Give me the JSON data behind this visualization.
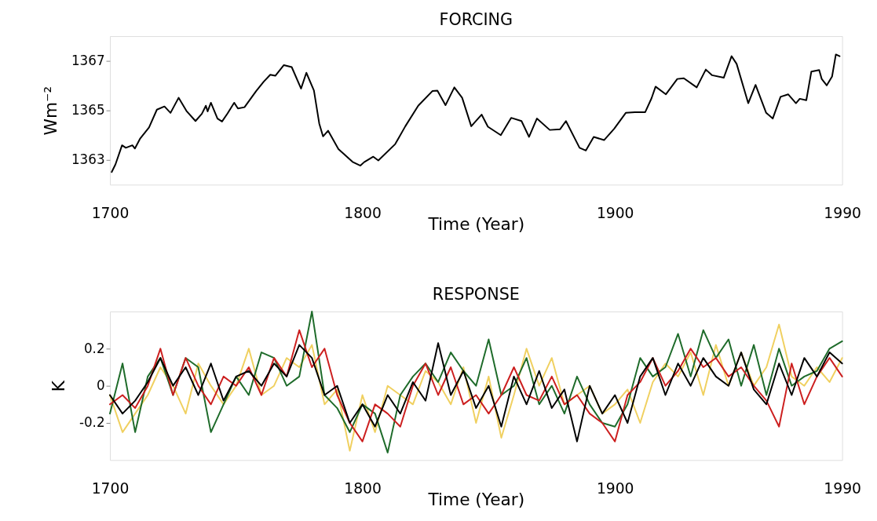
{
  "chart_data": [
    {
      "type": "line",
      "title": "FORCING",
      "xlabel": "Time (Year)",
      "ylabel": "Wm⁻²",
      "xlim": [
        1700,
        1990
      ],
      "xticks": [
        1700,
        1800,
        1900,
        1990
      ],
      "ylim": [
        1362,
        1368
      ],
      "yticks": [
        1363,
        1365,
        1367
      ],
      "grid": false,
      "series": [
        {
          "color": "#000000",
          "x": [
            1700.7,
            1702.2,
            1704.8,
            1706.3,
            1708.9,
            1709.9,
            1711.9,
            1715.5,
            1718.6,
            1721.6,
            1724.0,
            1727.2,
            1730.3,
            1733.9,
            1736.4,
            1738.0,
            1738.7,
            1740.0,
            1742.6,
            1744.4,
            1746.6,
            1749.2,
            1750.7,
            1753.3,
            1757.9,
            1760.9,
            1763.5,
            1765.5,
            1768.9,
            1772.0,
            1775.7,
            1777.8,
            1780.8,
            1782.9,
            1784.4,
            1786.4,
            1790.5,
            1796.1,
            1799.2,
            1800.7,
            1804.3,
            1806.3,
            1813.0,
            1817.0,
            1822.1,
            1827.7,
            1829.7,
            1832.9,
            1836.4,
            1839.5,
            1843.1,
            1847.2,
            1849.7,
            1854.8,
            1858.9,
            1863.0,
            1866.0,
            1869.1,
            1874.2,
            1878.3,
            1880.6,
            1886.0,
            1888.5,
            1891.6,
            1895.7,
            1899.7,
            1904.3,
            1907.9,
            1912.0,
            1914.5,
            1916.1,
            1920.2,
            1924.7,
            1927.3,
            1932.4,
            1936.0,
            1938.5,
            1943.1,
            1946.2,
            1948.2,
            1952.8,
            1955.7,
            1959.9,
            1962.5,
            1965.6,
            1968.6,
            1971.7,
            1973.2,
            1975.8,
            1977.8,
            1980.9,
            1981.9,
            1983.9,
            1986.0,
            1987.5,
            1989.0
          ],
          "values": [
            1362.51,
            1362.82,
            1363.59,
            1363.49,
            1363.59,
            1363.46,
            1363.85,
            1364.31,
            1365.03,
            1365.16,
            1364.9,
            1365.51,
            1364.98,
            1364.57,
            1364.86,
            1365.19,
            1364.96,
            1365.31,
            1364.67,
            1364.55,
            1364.88,
            1365.31,
            1365.08,
            1365.13,
            1365.78,
            1366.16,
            1366.44,
            1366.4,
            1366.83,
            1366.75,
            1365.88,
            1366.52,
            1365.8,
            1364.47,
            1363.95,
            1364.18,
            1363.44,
            1362.92,
            1362.77,
            1362.91,
            1363.13,
            1362.98,
            1363.64,
            1364.36,
            1365.19,
            1365.78,
            1365.8,
            1365.21,
            1365.93,
            1365.51,
            1364.36,
            1364.83,
            1364.34,
            1364.0,
            1364.7,
            1364.57,
            1363.93,
            1364.67,
            1364.21,
            1364.24,
            1364.57,
            1363.49,
            1363.38,
            1363.93,
            1363.8,
            1364.26,
            1364.9,
            1364.93,
            1364.93,
            1365.49,
            1365.96,
            1365.65,
            1366.27,
            1366.3,
            1365.93,
            1366.65,
            1366.42,
            1366.32,
            1367.19,
            1366.88,
            1365.29,
            1366.03,
            1364.9,
            1364.67,
            1365.55,
            1365.65,
            1365.29,
            1365.47,
            1365.41,
            1366.57,
            1366.63,
            1366.27,
            1366.01,
            1366.37,
            1367.26,
            1367.19
          ]
        }
      ]
    },
    {
      "type": "line",
      "title": "RESPONSE",
      "xlabel": "Time (Year)",
      "ylabel": "K",
      "xlim": [
        1700,
        1990
      ],
      "xticks": [
        1700,
        1800,
        1900,
        1990
      ],
      "ylim": [
        -0.4,
        0.4
      ],
      "yticks": [
        -0.2,
        0,
        0.2
      ],
      "grid": false,
      "x": [
        1700,
        1705,
        1710,
        1715,
        1720,
        1725,
        1730,
        1735,
        1740,
        1745,
        1750,
        1755,
        1760,
        1765,
        1770,
        1775,
        1780,
        1785,
        1790,
        1795,
        1800,
        1805,
        1810,
        1815,
        1820,
        1825,
        1830,
        1835,
        1840,
        1845,
        1850,
        1855,
        1860,
        1865,
        1870,
        1875,
        1880,
        1885,
        1890,
        1895,
        1900,
        1905,
        1910,
        1915,
        1920,
        1925,
        1930,
        1935,
        1940,
        1945,
        1950,
        1955,
        1960,
        1965,
        1970,
        1975,
        1980,
        1985,
        1990
      ],
      "series": [
        {
          "color": "#f0d060",
          "values": [
            -0.05,
            -0.25,
            -0.15,
            -0.05,
            0.1,
            0.0,
            -0.15,
            0.12,
            0.0,
            -0.1,
            0.0,
            0.2,
            -0.05,
            0.0,
            0.15,
            0.1,
            0.22,
            -0.1,
            -0.02,
            -0.35,
            -0.05,
            -0.25,
            0.0,
            -0.05,
            -0.1,
            0.08,
            0.02,
            -0.1,
            0.1,
            -0.2,
            0.05,
            -0.28,
            -0.05,
            0.2,
            0.0,
            0.15,
            -0.1,
            -0.05,
            0.0,
            -0.15,
            -0.1,
            -0.02,
            -0.2,
            0.02,
            0.12,
            0.05,
            0.18,
            -0.05,
            0.22,
            0.0,
            0.18,
            0.0,
            0.1,
            0.33,
            0.05,
            0.0,
            0.1,
            0.02,
            0.15
          ]
        },
        {
          "color": "#1e6b2a",
          "values": [
            -0.15,
            0.12,
            -0.25,
            0.05,
            0.15,
            -0.05,
            0.15,
            0.1,
            -0.25,
            -0.1,
            0.05,
            -0.05,
            0.18,
            0.15,
            0.0,
            0.05,
            0.4,
            -0.05,
            -0.12,
            -0.25,
            -0.1,
            -0.15,
            -0.36,
            -0.05,
            0.05,
            0.12,
            0.02,
            0.18,
            0.08,
            0.0,
            0.25,
            -0.05,
            0.0,
            0.15,
            -0.1,
            0.0,
            -0.15,
            0.05,
            -0.1,
            -0.2,
            -0.22,
            -0.1,
            0.15,
            0.05,
            0.1,
            0.28,
            0.05,
            0.3,
            0.15,
            0.25,
            0.0,
            0.22,
            -0.05,
            0.2,
            0.0,
            0.05,
            0.08,
            0.2,
            0.24
          ]
        },
        {
          "color": "#cc1f1f",
          "values": [
            -0.1,
            -0.05,
            -0.12,
            0.0,
            0.2,
            -0.05,
            0.15,
            0.0,
            -0.1,
            0.05,
            0.0,
            0.1,
            -0.05,
            0.15,
            0.05,
            0.3,
            0.1,
            0.2,
            -0.05,
            -0.2,
            -0.3,
            -0.1,
            -0.15,
            -0.22,
            0.0,
            0.12,
            -0.05,
            0.1,
            -0.1,
            -0.05,
            -0.15,
            -0.05,
            0.1,
            -0.05,
            -0.08,
            0.05,
            -0.1,
            -0.05,
            -0.15,
            -0.2,
            -0.3,
            -0.05,
            0.02,
            0.15,
            0.0,
            0.08,
            0.2,
            0.1,
            0.15,
            0.05,
            0.1,
            0.0,
            -0.08,
            -0.22,
            0.12,
            -0.1,
            0.05,
            0.15,
            0.05
          ]
        },
        {
          "color": "#000000",
          "values": [
            -0.05,
            -0.15,
            -0.08,
            0.02,
            0.15,
            0.0,
            0.1,
            -0.05,
            0.12,
            -0.08,
            0.05,
            0.08,
            0.0,
            0.12,
            0.05,
            0.22,
            0.15,
            -0.05,
            0.0,
            -0.2,
            -0.1,
            -0.22,
            -0.05,
            -0.15,
            0.02,
            -0.08,
            0.23,
            -0.05,
            0.08,
            -0.12,
            0.0,
            -0.22,
            0.05,
            -0.1,
            0.08,
            -0.12,
            -0.02,
            -0.3,
            0.0,
            -0.15,
            -0.05,
            -0.2,
            0.05,
            0.15,
            -0.05,
            0.12,
            0.0,
            0.15,
            0.05,
            0.0,
            0.18,
            -0.02,
            -0.1,
            0.12,
            -0.05,
            0.15,
            0.05,
            0.18,
            0.12
          ]
        }
      ]
    }
  ]
}
